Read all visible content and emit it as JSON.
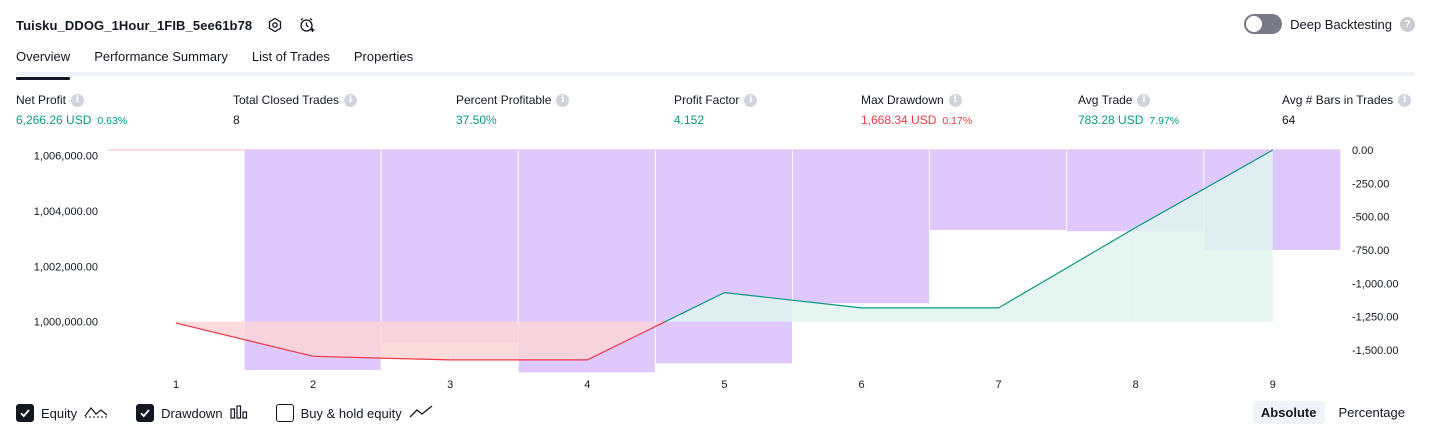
{
  "header": {
    "strategy_title": "Tuisku_DDOG_1Hour_1FIB_5ee61b78",
    "icons": [
      "settings-icon",
      "alarm-add-icon"
    ]
  },
  "deep_backtesting": {
    "label": "Deep Backtesting",
    "enabled": false,
    "help": "?"
  },
  "tabs": [
    {
      "label": "Overview",
      "active": true
    },
    {
      "label": "Performance Summary",
      "active": false
    },
    {
      "label": "List of Trades",
      "active": false
    },
    {
      "label": "Properties",
      "active": false
    }
  ],
  "metrics": [
    {
      "label": "Net Profit",
      "value": "6,266.26 USD",
      "pct": "0.63%",
      "color": "green"
    },
    {
      "label": "Total Closed Trades",
      "value": "8",
      "pct": "",
      "color": "neutral"
    },
    {
      "label": "Percent Profitable",
      "value": "37.50%",
      "pct": "",
      "color": "green"
    },
    {
      "label": "Profit Factor",
      "value": "4.152",
      "pct": "",
      "color": "green"
    },
    {
      "label": "Max Drawdown",
      "value": "1,668.34 USD",
      "pct": "0.17%",
      "color": "red"
    },
    {
      "label": "Avg Trade",
      "value": "783.28 USD",
      "pct": "7.97%",
      "color": "green"
    },
    {
      "label": "Avg # Bars in Trades",
      "value": "64",
      "pct": "",
      "color": "neutral"
    }
  ],
  "info_glyph": "i",
  "chart_data": {
    "type": "line",
    "x": [
      1,
      2,
      3,
      4,
      5,
      6,
      7,
      8,
      9
    ],
    "left_axis_ticks": [
      "1,006,000.00",
      "1,004,000.00",
      "1,002,000.00",
      "1,000,000.00"
    ],
    "right_axis_ticks": [
      "0.00",
      "-250.00",
      "-500.00",
      "-750.00",
      "-1,000.00",
      "-1,250.00",
      "-1,500.00"
    ],
    "y_left_lim": [
      998400,
      1006200
    ],
    "y_right_lim": [
      -1620,
      0
    ],
    "series": [
      {
        "name": "Equity",
        "axis": "left",
        "values": [
          999950,
          998750,
          998620,
          998620,
          1001050,
          1000500,
          1000500,
          1003400,
          1006200
        ]
      },
      {
        "name": "Drawdown",
        "axis": "right",
        "type": "bar",
        "values": [
          0,
          -1650,
          -1450,
          -1668.34,
          -1600,
          -1150,
          -600,
          -610,
          -750
        ]
      }
    ],
    "baseline_equity": 1000000,
    "colors": {
      "equity_up_line": "#089981",
      "equity_up_fill": "#e0f4ee",
      "equity_down_line": "#f23645",
      "equity_down_fill": "#fcd5d7",
      "drawdown_bar": "#dcc2fb",
      "drawdown_top_line": "#f7b3c4"
    }
  },
  "legend": [
    {
      "label": "Equity",
      "checked": true,
      "icon": "equity-line-icon"
    },
    {
      "label": "Drawdown",
      "checked": true,
      "icon": "drawdown-bars-icon"
    },
    {
      "label": "Buy & hold equity",
      "checked": false,
      "icon": "buy-hold-line-icon"
    }
  ],
  "modes": [
    {
      "label": "Absolute",
      "active": true
    },
    {
      "label": "Percentage",
      "active": false
    }
  ]
}
